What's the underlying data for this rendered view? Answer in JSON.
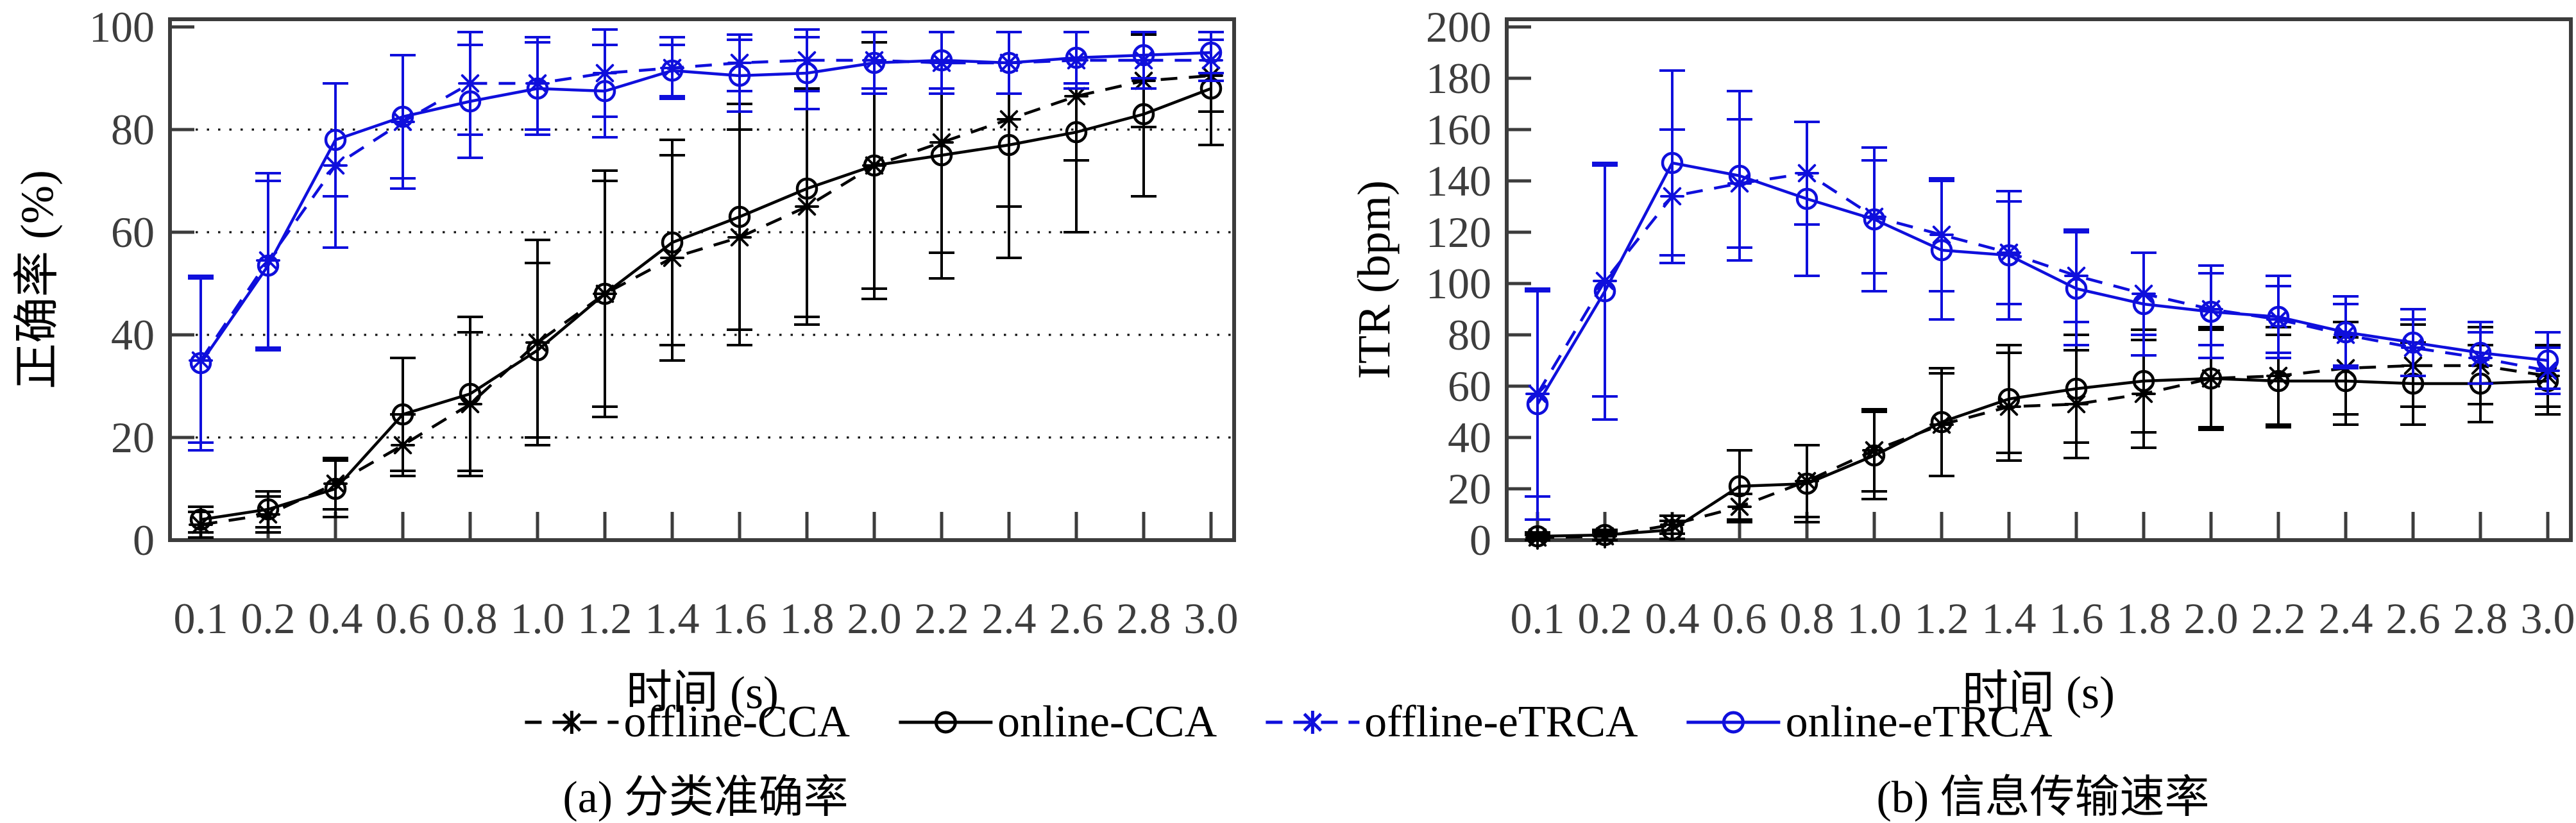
{
  "figure": {
    "legend": [
      {
        "label": "offline-CCA",
        "color": "#000000",
        "dash": true,
        "marker": "asterisk"
      },
      {
        "label": "online-CCA",
        "color": "#000000",
        "dash": false,
        "marker": "circle"
      },
      {
        "label": "offline-eTRCA",
        "color": "#0f0fdc",
        "dash": true,
        "marker": "asterisk"
      },
      {
        "label": "online-eTRCA",
        "color": "#0f0fdc",
        "dash": false,
        "marker": "circle"
      }
    ],
    "captions": {
      "a": "(a) 分类准确率",
      "b": "(b) 信息传输速率"
    },
    "colors": {
      "black": "#000000",
      "blue": "#0f0fdc",
      "axis": "#3c3c3c",
      "tick_label": "#3d3d3d"
    }
  },
  "chart_data": [
    {
      "type": "line",
      "panel": "a",
      "xlabel": "时间 (s)",
      "ylabel": "正确率 (%)",
      "x": [
        "0.1",
        "0.2",
        "0.4",
        "0.6",
        "0.8",
        "1.0",
        "1.2",
        "1.4",
        "1.6",
        "1.8",
        "2.0",
        "2.2",
        "2.4",
        "2.6",
        "2.8",
        "3.0"
      ],
      "ylim": [
        0,
        100
      ],
      "ytick_step": 20,
      "grid_y": [
        20,
        40,
        60,
        80
      ],
      "legend_position": "below-figure",
      "series": [
        {
          "name": "offline-CCA",
          "color": "#000000",
          "dash": true,
          "marker": "asterisk",
          "values": [
            3,
            5,
            11,
            18.5,
            26.5,
            38.5,
            48,
            55,
            59,
            65,
            73,
            77.5,
            82,
            86.5,
            89.5,
            90.5
          ],
          "err": [
            2.5,
            3.5,
            5,
            6,
            14,
            20,
            22,
            20,
            21,
            23,
            24,
            21.5,
            17,
            12.5,
            9,
            7
          ]
        },
        {
          "name": "online-CCA",
          "color": "#000000",
          "dash": false,
          "marker": "circle",
          "values": [
            4,
            6,
            10,
            24.5,
            28.5,
            37,
            48,
            58,
            63,
            68.5,
            73,
            75,
            77,
            79.5,
            83,
            88
          ],
          "err": [
            2.5,
            3.5,
            5.5,
            11,
            15,
            17,
            24,
            20,
            22,
            25,
            26,
            24,
            22,
            19.5,
            16,
            11
          ]
        },
        {
          "name": "offline-eTRCA",
          "color": "#0f0fdc",
          "dash": true,
          "marker": "asterisk",
          "values": [
            35,
            54.5,
            73,
            81.5,
            89,
            89,
            91,
            92,
            93,
            93.5,
            93.5,
            93,
            93,
            93.5,
            93.5,
            93.5
          ],
          "err": [
            16,
            17,
            16,
            13,
            10,
            9,
            8.5,
            6,
            5.5,
            6,
            5.5,
            6,
            6,
            5.5,
            5.5,
            4
          ]
        },
        {
          "name": "online-eTRCA",
          "color": "#0f0fdc",
          "dash": false,
          "marker": "circle",
          "values": [
            34.5,
            53.5,
            78,
            82.5,
            85.5,
            88,
            87.5,
            91.5,
            90.5,
            91,
            93,
            93.5,
            93,
            94,
            94.5,
            95
          ],
          "err": [
            17,
            16.5,
            11,
            12,
            11,
            9,
            9,
            5,
            7,
            7,
            6,
            5.5,
            6,
            5,
            4.5,
            4
          ]
        }
      ]
    },
    {
      "type": "line",
      "panel": "b",
      "xlabel": "时间 (s)",
      "ylabel": "ITR (bpm)",
      "x": [
        "0.1",
        "0.2",
        "0.4",
        "0.6",
        "0.8",
        "1.0",
        "1.2",
        "1.4",
        "1.6",
        "1.8",
        "2.0",
        "2.2",
        "2.4",
        "2.6",
        "2.8",
        "3.0"
      ],
      "ylim": [
        0,
        200
      ],
      "ytick_step": 20,
      "grid_y": [],
      "legend_position": "below-figure",
      "series": [
        {
          "name": "offline-CCA",
          "color": "#000000",
          "dash": true,
          "marker": "asterisk",
          "values": [
            1,
            1.5,
            6,
            13,
            23,
            35,
            45,
            52,
            53,
            57,
            63,
            64,
            67,
            68,
            68,
            64
          ],
          "err": [
            1,
            1.5,
            3.5,
            5,
            14,
            16,
            20,
            21,
            21,
            21,
            20,
            19,
            18,
            16,
            15,
            12
          ]
        },
        {
          "name": "online-CCA",
          "color": "#000000",
          "dash": false,
          "marker": "circle",
          "values": [
            1.5,
            2,
            4,
            21,
            22,
            33,
            46,
            55,
            59,
            62,
            63,
            62,
            62,
            61,
            61,
            62
          ],
          "err": [
            1.5,
            2,
            3.5,
            14,
            15,
            17,
            21,
            21,
            21,
            20,
            19,
            18,
            17,
            16,
            15,
            13
          ]
        },
        {
          "name": "offline-eTRCA",
          "color": "#0f0fdc",
          "dash": true,
          "marker": "asterisk",
          "values": [
            57,
            101,
            134,
            139,
            143,
            126,
            119,
            112,
            103,
            96,
            90,
            86,
            80,
            75,
            71,
            66
          ],
          "err": [
            40,
            45,
            26,
            25,
            20,
            22,
            22,
            20,
            18,
            16,
            14,
            13,
            12,
            11,
            10,
            9
          ]
        },
        {
          "name": "online-eTRCA",
          "color": "#0f0fdc",
          "dash": false,
          "marker": "circle",
          "values": [
            53,
            97,
            147,
            142,
            133,
            125,
            113,
            111,
            98,
            92,
            89,
            87,
            81,
            77,
            73,
            70
          ],
          "err": [
            45,
            50,
            36,
            33,
            30,
            28,
            27,
            25,
            22,
            20,
            18,
            16,
            14,
            13,
            12,
            11
          ]
        }
      ]
    }
  ]
}
